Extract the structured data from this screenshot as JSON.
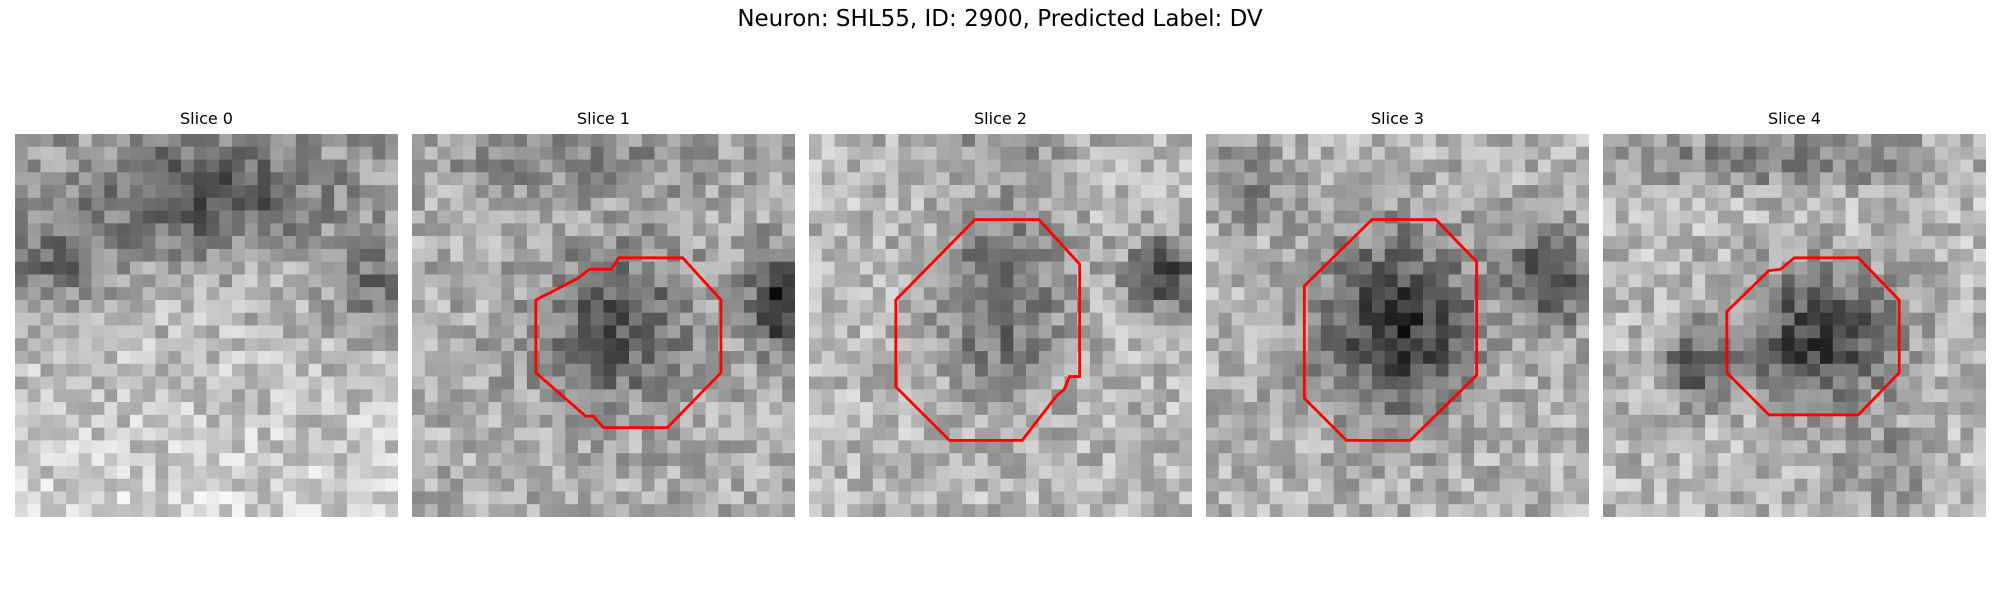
{
  "figure": {
    "title": "Neuron: SHL55, ID: 2900, Predicted Label: DV"
  },
  "panels": [
    {
      "title": "Slice 0",
      "has_outline": false
    },
    {
      "title": "Slice 1",
      "has_outline": true
    },
    {
      "title": "Slice 2",
      "has_outline": true
    },
    {
      "title": "Slice 3",
      "has_outline": true
    },
    {
      "title": "Slice 4",
      "has_outline": true
    }
  ],
  "colors": {
    "outline": "#ff0000",
    "colormap": "grayscale"
  }
}
